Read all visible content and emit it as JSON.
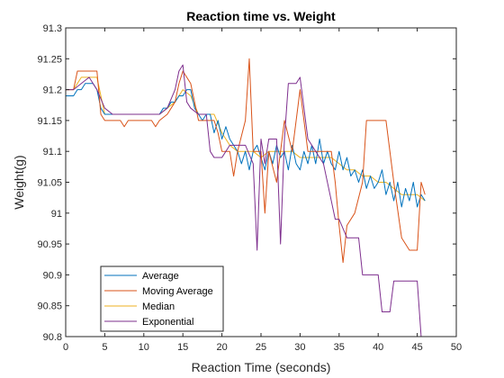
{
  "chart_data": {
    "type": "line",
    "title": "Reaction time vs. Weight",
    "xlabel": "Reaction Time (seconds)",
    "ylabel": "Weight(g)",
    "xlim": [
      0,
      50
    ],
    "ylim": [
      90.8,
      91.3
    ],
    "xticks": [
      0,
      5,
      10,
      15,
      20,
      25,
      30,
      35,
      40,
      45,
      50
    ],
    "yticks": [
      90.8,
      90.85,
      90.9,
      90.95,
      91,
      91.05,
      91.1,
      91.15,
      91.2,
      91.25,
      91.3
    ],
    "grid": false,
    "legend_location": "bottom-left",
    "series": [
      {
        "name": "Average",
        "color": "#0072BD",
        "x": [
          0,
          1,
          1.5,
          2,
          2.5,
          3,
          3.5,
          4,
          4.5,
          5,
          5.5,
          6,
          7,
          8,
          9,
          10,
          11,
          12,
          12.5,
          13,
          13.5,
          14,
          14.5,
          15,
          15.5,
          16,
          16.5,
          17,
          17.5,
          18,
          18.5,
          19,
          19.5,
          20,
          20.5,
          21,
          21.5,
          22,
          22.5,
          23,
          23.5,
          24,
          24.5,
          25,
          25.5,
          26,
          26.5,
          27,
          27.5,
          28,
          28.5,
          29,
          29.5,
          30,
          30.5,
          31,
          31.5,
          32,
          32.5,
          33,
          33.5,
          34,
          34.5,
          35,
          35.5,
          36,
          36.5,
          37,
          37.5,
          38,
          38.5,
          39,
          39.5,
          40,
          40.5,
          41,
          41.5,
          42,
          42.5,
          43,
          43.5,
          44,
          44.5,
          45,
          45.5,
          46
        ],
        "y": [
          91.19,
          91.19,
          91.2,
          91.2,
          91.21,
          91.21,
          91.21,
          91.2,
          91.17,
          91.16,
          91.16,
          91.16,
          91.16,
          91.16,
          91.16,
          91.16,
          91.16,
          91.16,
          91.17,
          91.17,
          91.18,
          91.18,
          91.19,
          91.19,
          91.2,
          91.2,
          91.17,
          91.16,
          91.15,
          91.16,
          91.16,
          91.13,
          91.15,
          91.12,
          91.14,
          91.12,
          91.11,
          91.1,
          91.08,
          91.1,
          91.07,
          91.1,
          91.11,
          91.09,
          91.07,
          91.1,
          91.08,
          91.11,
          91.09,
          91.1,
          91.07,
          91.11,
          91.08,
          91.07,
          91.1,
          91.08,
          91.11,
          91.08,
          91.12,
          91.08,
          91.1,
          91.08,
          91.07,
          91.1,
          91.07,
          91.09,
          91.06,
          91.07,
          91.05,
          91.07,
          91.04,
          91.06,
          91.04,
          91.05,
          91.07,
          91.03,
          91.05,
          91.02,
          91.05,
          91.01,
          91.04,
          91.02,
          91.05,
          91.01,
          91.03,
          91.02
        ]
      },
      {
        "name": "Moving Average",
        "color": "#D95319",
        "x": [
          0,
          1,
          1.5,
          2,
          3,
          4,
          4.5,
          5,
          6,
          7,
          7.5,
          8,
          9,
          10,
          11,
          11.5,
          12,
          13,
          14,
          14.5,
          15,
          16,
          17,
          18,
          19,
          19.5,
          20,
          21,
          21.5,
          22,
          23,
          23.5,
          24,
          25,
          25.5,
          26,
          27,
          28,
          29,
          30,
          31,
          32,
          33,
          34,
          34.5,
          35,
          35.5,
          36,
          37,
          38,
          38.5,
          39,
          40,
          41,
          42,
          43,
          44,
          45,
          45.5,
          46
        ],
        "y": [
          91.2,
          91.2,
          91.23,
          91.23,
          91.23,
          91.23,
          91.16,
          91.15,
          91.15,
          91.15,
          91.14,
          91.15,
          91.15,
          91.15,
          91.15,
          91.14,
          91.15,
          91.16,
          91.18,
          91.21,
          91.23,
          91.21,
          91.15,
          91.15,
          91.15,
          91.13,
          91.1,
          91.1,
          91.06,
          91.1,
          91.15,
          91.25,
          91.1,
          91.1,
          91.0,
          91.1,
          91.05,
          91.15,
          91.1,
          91.2,
          91.1,
          91.1,
          91.1,
          91.1,
          91.05,
          90.98,
          90.92,
          90.98,
          91.0,
          91.05,
          91.15,
          91.15,
          91.15,
          91.15,
          91.05,
          90.96,
          90.94,
          90.94,
          91.05,
          91.03
        ]
      },
      {
        "name": "Median",
        "color": "#EDB120",
        "x": [
          0,
          1,
          2,
          3,
          4,
          5,
          6,
          7,
          8,
          9,
          10,
          11,
          12,
          13,
          14,
          15,
          16,
          17,
          18,
          19,
          20,
          21,
          22,
          23,
          24,
          25,
          26,
          27,
          28,
          29,
          30,
          31,
          32,
          33,
          34,
          35,
          36,
          37,
          38,
          39,
          40,
          41,
          42,
          43,
          44,
          45,
          46
        ],
        "y": [
          91.2,
          91.2,
          91.22,
          91.22,
          91.22,
          91.16,
          91.16,
          91.16,
          91.16,
          91.16,
          91.16,
          91.16,
          91.16,
          91.17,
          91.18,
          91.2,
          91.19,
          91.16,
          91.16,
          91.16,
          91.13,
          91.11,
          91.1,
          91.1,
          91.1,
          91.09,
          91.1,
          91.1,
          91.1,
          91.1,
          91.09,
          91.09,
          91.09,
          91.09,
          91.09,
          91.08,
          91.07,
          91.07,
          91.06,
          91.06,
          91.05,
          91.05,
          91.04,
          91.03,
          91.03,
          91.03,
          91.02
        ]
      },
      {
        "name": "Exponential",
        "color": "#7E2F8E",
        "x": [
          0,
          1,
          2,
          3,
          4,
          5,
          6,
          7,
          8,
          9,
          10,
          11,
          12,
          13,
          14,
          14.5,
          15,
          15.5,
          16,
          17,
          18,
          18.5,
          19,
          20,
          21,
          22,
          23,
          24,
          24.5,
          25,
          25.5,
          26,
          27,
          27.5,
          28,
          28.5,
          29,
          29.5,
          30,
          31,
          32,
          33,
          34,
          34.5,
          35,
          36,
          37,
          37.5,
          38,
          39,
          40,
          40.5,
          41,
          41.5,
          42,
          43,
          44,
          45,
          45.5,
          46
        ],
        "y": [
          91.2,
          91.2,
          91.21,
          91.22,
          91.2,
          91.17,
          91.16,
          91.16,
          91.16,
          91.16,
          91.16,
          91.16,
          91.16,
          91.17,
          91.2,
          91.23,
          91.24,
          91.18,
          91.17,
          91.16,
          91.16,
          91.1,
          91.09,
          91.09,
          91.11,
          91.11,
          91.11,
          91.08,
          90.94,
          91.12,
          91.08,
          91.12,
          91.12,
          90.95,
          91.12,
          91.21,
          91.21,
          91.21,
          91.22,
          91.12,
          91.1,
          91.08,
          91.02,
          90.99,
          90.99,
          90.96,
          90.96,
          90.96,
          90.9,
          90.9,
          90.9,
          90.84,
          90.84,
          90.84,
          90.89,
          90.89,
          90.89,
          90.89,
          90.8,
          90.8
        ]
      }
    ]
  }
}
